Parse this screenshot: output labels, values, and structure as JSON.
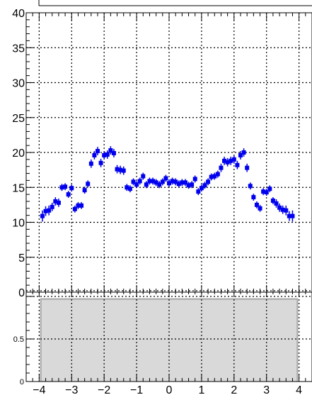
{
  "chart_data": [
    {
      "type": "scatter",
      "title": "",
      "xlabel": "",
      "ylabel": "",
      "xlim": [
        -4.4,
        4.4
      ],
      "ylim": [
        0,
        40
      ],
      "grid": true,
      "y_ticks": [
        "0",
        "5",
        "10",
        "15",
        "20",
        "25",
        "30",
        "35",
        "40"
      ],
      "y_tick_values": [
        0,
        5,
        10,
        15,
        20,
        25,
        30,
        35,
        40
      ],
      "marker_color": "#0000ee",
      "series": [
        {
          "x": [
            -3.9,
            -3.8,
            -3.7,
            -3.6,
            -3.5,
            -3.4,
            -3.3,
            -3.2,
            -3.1,
            -3.0,
            -2.9,
            -2.8,
            -2.7,
            -2.6,
            -2.5,
            -2.4,
            -2.3,
            -2.2,
            -2.1,
            -2.0,
            -1.9,
            -1.8,
            -1.7,
            -1.6,
            -1.5,
            -1.4,
            -1.3,
            -1.2,
            -1.1,
            -1.0,
            -0.9,
            -0.8,
            -0.7,
            -0.6,
            -0.5,
            -0.4,
            -0.3,
            -0.2,
            -0.1,
            0.0,
            0.1,
            0.2,
            0.3,
            0.4,
            0.5,
            0.6,
            0.7,
            0.8,
            0.9,
            1.0,
            1.1,
            1.2,
            1.3,
            1.4,
            1.5,
            1.6,
            1.7,
            1.8,
            1.9,
            2.0,
            2.1,
            2.2,
            2.3,
            2.4,
            2.5,
            2.6,
            2.7,
            2.8,
            2.9,
            3.0,
            3.1,
            3.2,
            3.3,
            3.4,
            3.5,
            3.6,
            3.7,
            3.8
          ],
          "y": [
            10.9,
            11.6,
            11.7,
            12.2,
            13.0,
            12.8,
            15.0,
            15.1,
            14.0,
            14.9,
            11.9,
            12.4,
            12.4,
            14.6,
            15.5,
            18.4,
            19.6,
            20.2,
            18.5,
            19.6,
            19.7,
            20.3,
            19.9,
            17.6,
            17.5,
            17.4,
            15.0,
            14.8,
            15.8,
            15.4,
            15.9,
            16.6,
            15.4,
            15.9,
            15.9,
            15.7,
            15.4,
            15.8,
            16.3,
            15.6,
            15.9,
            15.8,
            15.5,
            15.7,
            15.7,
            15.3,
            15.4,
            16.2,
            14.4,
            14.9,
            15.3,
            15.8,
            16.5,
            16.6,
            16.9,
            17.8,
            18.8,
            18.6,
            18.8,
            19.0,
            18.2,
            19.6,
            20.0,
            17.8,
            15.2,
            13.6,
            12.5,
            12.0,
            14.4,
            14.3,
            14.8,
            13.1,
            12.7,
            12.1,
            11.8,
            11.7,
            10.9,
            10.9
          ],
          "err": [
            0.8,
            0.7,
            0.7,
            0.6,
            0.6,
            0.6,
            0.5,
            0.5,
            0.5,
            0.5,
            0.5,
            0.5,
            0.5,
            0.5,
            0.5,
            0.6,
            0.6,
            0.6,
            0.6,
            0.6,
            0.6,
            0.6,
            0.6,
            0.6,
            0.6,
            0.6,
            0.5,
            0.5,
            0.5,
            0.5,
            0.5,
            0.5,
            0.5,
            0.5,
            0.5,
            0.5,
            0.5,
            0.5,
            0.5,
            0.5,
            0.5,
            0.5,
            0.5,
            0.5,
            0.5,
            0.5,
            0.5,
            0.5,
            0.5,
            0.5,
            0.5,
            0.5,
            0.5,
            0.5,
            0.5,
            0.6,
            0.6,
            0.6,
            0.6,
            0.6,
            0.6,
            0.6,
            0.6,
            0.6,
            0.5,
            0.5,
            0.5,
            0.5,
            0.5,
            0.5,
            0.5,
            0.5,
            0.6,
            0.6,
            0.6,
            0.7,
            0.7,
            0.8
          ]
        }
      ]
    },
    {
      "type": "area",
      "title": "",
      "xlabel": "",
      "ylabel": "",
      "xlim": [
        -4.4,
        4.4
      ],
      "ylim": [
        0,
        1.05
      ],
      "grid": true,
      "x_ticks": [
        "−4",
        "−3",
        "−2",
        "−1",
        "0",
        "1",
        "2",
        "3",
        "4"
      ],
      "x_tick_values": [
        -4,
        -3,
        -2,
        -1,
        0,
        1,
        2,
        3,
        4
      ],
      "y_ticks": [
        "0",
        "0.5"
      ],
      "y_tick_values": [
        0,
        0.5
      ],
      "fill_color": "#d9d9d9",
      "edge_color": "#a6a6a6",
      "series": [
        {
          "x": [
            -3.95,
            3.95
          ],
          "y": [
            0.97,
            0.97
          ]
        }
      ]
    }
  ]
}
